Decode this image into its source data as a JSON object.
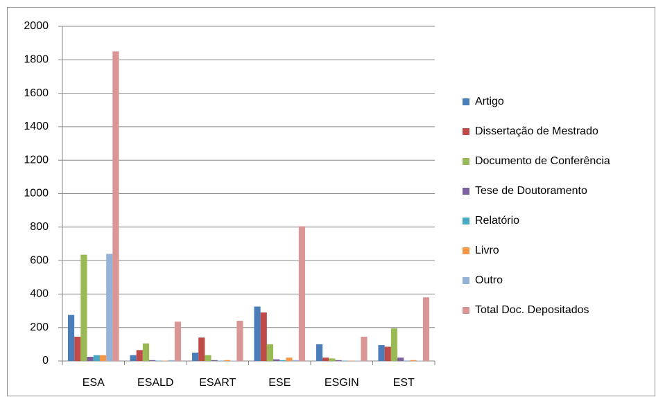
{
  "chart_data": {
    "type": "bar",
    "categories": [
      "ESA",
      "ESALD",
      "ESART",
      "ESE",
      "ESGIN",
      "EST"
    ],
    "series": [
      {
        "name": "Artigo",
        "color": "#4a7ebb",
        "values": [
          275,
          35,
          50,
          325,
          100,
          95
        ]
      },
      {
        "name": "Dissertação de Mestrado",
        "color": "#be4b48",
        "values": [
          145,
          65,
          140,
          290,
          20,
          85
        ]
      },
      {
        "name": "Documento de Conferência",
        "color": "#98b954",
        "values": [
          635,
          105,
          35,
          100,
          15,
          195
        ]
      },
      {
        "name": "Tese de Doutoramento",
        "color": "#7d60a0",
        "values": [
          25,
          5,
          5,
          10,
          5,
          20
        ]
      },
      {
        "name": "Relatório",
        "color": "#46aac5",
        "values": [
          35,
          2,
          2,
          5,
          2,
          2
        ]
      },
      {
        "name": "Livro",
        "color": "#f79646",
        "values": [
          35,
          2,
          5,
          20,
          2,
          5
        ]
      },
      {
        "name": "Outro",
        "color": "#95b3d7",
        "values": [
          640,
          5,
          2,
          5,
          2,
          2
        ]
      },
      {
        "name": "Total Doc. Depositados",
        "color": "#d99694",
        "values": [
          1850,
          235,
          240,
          805,
          145,
          380
        ]
      }
    ],
    "ylim": [
      0,
      2000
    ],
    "yticks": [
      0,
      200,
      400,
      600,
      800,
      1000,
      1200,
      1400,
      1600,
      1800,
      2000
    ],
    "grid": true,
    "legend": "right"
  }
}
